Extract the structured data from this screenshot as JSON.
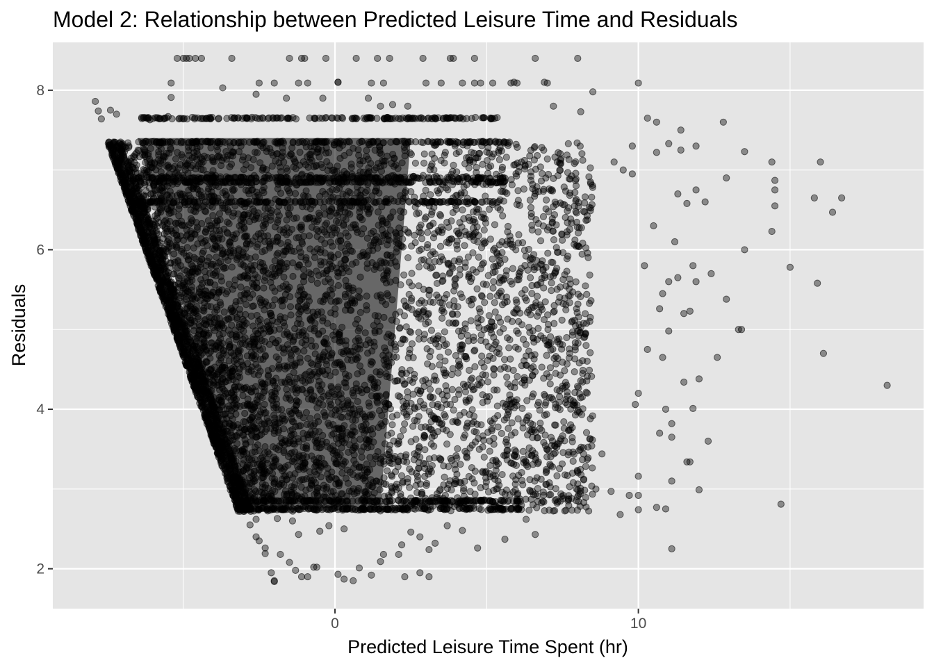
{
  "chart_data": {
    "type": "scatter",
    "title": "Model 2: Relationship between Predicted Leisure Time and Residuals",
    "xlabel": "Predicted Leisure Time Spent (hr)",
    "ylabel": "Residuals",
    "xlim": [
      -9.3,
      19.4
    ],
    "ylim": [
      1.5,
      8.6
    ],
    "x_ticks": [
      0,
      10
    ],
    "x_tick_labels": [
      "0",
      "10"
    ],
    "x_minor_ticks": [
      -5,
      5,
      15
    ],
    "y_ticks": [
      2,
      4,
      6,
      8
    ],
    "y_tick_labels": [
      "2",
      "4",
      "6",
      "8"
    ],
    "y_minor_ticks": [
      3,
      5,
      7
    ],
    "grid": true,
    "legend": "none",
    "colors": {
      "panel": "#e5e5e5",
      "grid": "#ffffff",
      "point": "#000000"
    },
    "point_alpha": 0.4,
    "dense_region": {
      "description_free_bounds": true,
      "left_edge": [
        [
          -7.5,
          7.35
        ],
        [
          -3.2,
          2.72
        ]
      ],
      "y_range": [
        2.72,
        7.35
      ],
      "x_max": 8.5,
      "core": [
        [
          -6.5,
          7.4
        ],
        [
          -3.2,
          2.7
        ],
        [
          1.5,
          2.8
        ],
        [
          2.5,
          7.4
        ]
      ],
      "bands_y": [
        7.65,
        7.35,
        6.9,
        6.85,
        6.6,
        2.75,
        2.85
      ]
    },
    "points": [
      [
        -7.9,
        7.86
      ],
      [
        -7.8,
        7.74
      ],
      [
        -7.7,
        7.64
      ],
      [
        -7.4,
        7.75
      ],
      [
        -7.2,
        7.7
      ],
      [
        -6.1,
        7.63
      ],
      [
        -5.5,
        7.67
      ],
      [
        -5.4,
        8.09
      ],
      [
        -5.4,
        7.91
      ],
      [
        -5.2,
        8.4
      ],
      [
        -5.0,
        8.4
      ],
      [
        -4.9,
        8.4
      ],
      [
        -4.8,
        8.4
      ],
      [
        -4.6,
        8.4
      ],
      [
        -4.4,
        8.4
      ],
      [
        -3.7,
        8.03
      ],
      [
        -3.4,
        8.4
      ],
      [
        -2.6,
        7.95
      ],
      [
        -2.5,
        8.09
      ],
      [
        -2.0,
        8.09
      ],
      [
        -1.6,
        7.9
      ],
      [
        -1.5,
        8.4
      ],
      [
        -1.2,
        8.09
      ],
      [
        -1.1,
        8.4
      ],
      [
        -1.0,
        8.4
      ],
      [
        -0.9,
        8.09
      ],
      [
        -0.4,
        7.9
      ],
      [
        -0.3,
        8.4
      ],
      [
        0.1,
        8.1
      ],
      [
        0.1,
        8.1
      ],
      [
        0.7,
        8.4
      ],
      [
        1.1,
        7.9
      ],
      [
        1.2,
        8.09
      ],
      [
        1.4,
        8.4
      ],
      [
        1.5,
        7.8
      ],
      [
        1.6,
        8.09
      ],
      [
        1.8,
        8.4
      ],
      [
        1.9,
        7.82
      ],
      [
        2.0,
        7.65
      ],
      [
        2.4,
        7.8
      ],
      [
        2.9,
        8.4
      ],
      [
        3.0,
        8.09
      ],
      [
        3.3,
        7.65
      ],
      [
        3.5,
        8.09
      ],
      [
        3.8,
        8.4
      ],
      [
        3.9,
        8.4
      ],
      [
        4.2,
        8.09
      ],
      [
        4.6,
        8.09
      ],
      [
        4.6,
        8.4
      ],
      [
        4.8,
        8.09
      ],
      [
        5.2,
        8.09
      ],
      [
        5.8,
        8.09
      ],
      [
        5.9,
        8.1
      ],
      [
        6.0,
        8.09
      ],
      [
        6.9,
        8.1
      ],
      [
        6.6,
        8.4
      ],
      [
        7.0,
        8.09
      ],
      [
        8.0,
        8.4
      ],
      [
        7.2,
        7.8
      ],
      [
        8.1,
        7.73
      ],
      [
        8.5,
        7.98
      ],
      [
        10.0,
        8.09
      ],
      [
        10.3,
        7.65
      ],
      [
        10.6,
        7.6
      ],
      [
        11.4,
        7.5
      ],
      [
        9.8,
        7.3
      ],
      [
        9.5,
        7.0
      ],
      [
        9.2,
        7.1
      ],
      [
        9.8,
        6.95
      ],
      [
        10.6,
        7.22
      ],
      [
        11.0,
        7.33
      ],
      [
        11.4,
        7.25
      ],
      [
        11.9,
        7.3
      ],
      [
        12.8,
        7.6
      ],
      [
        13.5,
        7.23
      ],
      [
        14.4,
        7.1
      ],
      [
        14.5,
        6.87
      ],
      [
        14.5,
        6.75
      ],
      [
        14.5,
        6.55
      ],
      [
        14.4,
        6.23
      ],
      [
        16.0,
        7.1
      ],
      [
        15.8,
        6.65
      ],
      [
        16.4,
        6.47
      ],
      [
        16.7,
        6.65
      ],
      [
        12.9,
        6.9
      ],
      [
        12.2,
        6.6
      ],
      [
        11.3,
        6.7
      ],
      [
        11.9,
        6.75
      ],
      [
        11.6,
        6.58
      ],
      [
        10.5,
        6.3
      ],
      [
        11.2,
        6.1
      ],
      [
        10.2,
        5.8
      ],
      [
        11.0,
        5.6
      ],
      [
        10.8,
        5.45
      ],
      [
        11.8,
        5.8
      ],
      [
        12.4,
        5.7
      ],
      [
        11.9,
        5.6
      ],
      [
        11.3,
        5.65
      ],
      [
        13.5,
        6.0
      ],
      [
        15.0,
        5.78
      ],
      [
        15.9,
        5.58
      ],
      [
        12.9,
        5.38
      ],
      [
        10.7,
        5.26
      ],
      [
        11.7,
        5.23
      ],
      [
        11.5,
        5.2
      ],
      [
        12.6,
        4.65
      ],
      [
        13.3,
        5.0
      ],
      [
        13.4,
        5.0
      ],
      [
        16.1,
        4.7
      ],
      [
        18.2,
        4.3
      ],
      [
        11.0,
        4.98
      ],
      [
        10.8,
        4.65
      ],
      [
        10.3,
        4.75
      ],
      [
        11.5,
        4.34
      ],
      [
        12.0,
        4.38
      ],
      [
        10.0,
        4.2
      ],
      [
        9.9,
        4.06
      ],
      [
        10.9,
        4.0
      ],
      [
        11.1,
        3.82
      ],
      [
        10.7,
        3.7
      ],
      [
        11.1,
        3.65
      ],
      [
        11.8,
        4.01
      ],
      [
        12.3,
        3.6
      ],
      [
        11.6,
        3.34
      ],
      [
        11.7,
        3.34
      ],
      [
        10.0,
        3.16
      ],
      [
        11.1,
        3.1
      ],
      [
        12.0,
        2.99
      ],
      [
        9.1,
        2.97
      ],
      [
        9.7,
        2.92
      ],
      [
        10.0,
        2.92
      ],
      [
        10.0,
        2.74
      ],
      [
        10.6,
        2.77
      ],
      [
        10.9,
        2.75
      ],
      [
        9.4,
        2.68
      ],
      [
        11.1,
        2.25
      ],
      [
        14.7,
        2.81
      ],
      [
        8.8,
        3.44
      ],
      [
        8.6,
        3.0
      ],
      [
        8.2,
        2.83
      ],
      [
        7.7,
        2.87
      ],
      [
        6.3,
        2.62
      ],
      [
        6.6,
        2.43
      ],
      [
        5.6,
        2.37
      ],
      [
        4.7,
        2.26
      ],
      [
        4.2,
        2.48
      ],
      [
        3.7,
        2.54
      ],
      [
        3.3,
        2.32
      ],
      [
        3.1,
        2.24
      ],
      [
        2.8,
        2.4
      ],
      [
        2.5,
        2.46
      ],
      [
        2.2,
        2.3
      ],
      [
        2.1,
        2.18
      ],
      [
        1.6,
        2.18
      ],
      [
        1.5,
        2.09
      ],
      [
        1.2,
        1.92
      ],
      [
        2.3,
        1.9
      ],
      [
        2.8,
        1.95
      ],
      [
        3.1,
        1.9
      ],
      [
        0.8,
        2.01
      ],
      [
        0.6,
        1.85
      ],
      [
        0.1,
        1.93
      ],
      [
        0.3,
        1.87
      ],
      [
        -0.6,
        2.02
      ],
      [
        -0.7,
        2.02
      ],
      [
        -0.9,
        1.9
      ],
      [
        -1.1,
        1.9
      ],
      [
        -1.3,
        1.98
      ],
      [
        -2.0,
        1.85
      ],
      [
        -2.0,
        1.84
      ],
      [
        -2.1,
        1.95
      ],
      [
        -1.8,
        2.18
      ],
      [
        -1.5,
        2.08
      ],
      [
        -2.3,
        2.19
      ],
      [
        -2.3,
        2.26
      ],
      [
        -2.5,
        2.35
      ],
      [
        -2.6,
        2.4
      ],
      [
        -0.2,
        2.54
      ],
      [
        -0.5,
        2.47
      ],
      [
        -1.2,
        2.43
      ],
      [
        -1.4,
        2.6
      ],
      [
        -1.9,
        2.63
      ],
      [
        -2.6,
        2.62
      ],
      [
        -2.8,
        2.55
      ],
      [
        0.3,
        2.5
      ]
    ]
  }
}
